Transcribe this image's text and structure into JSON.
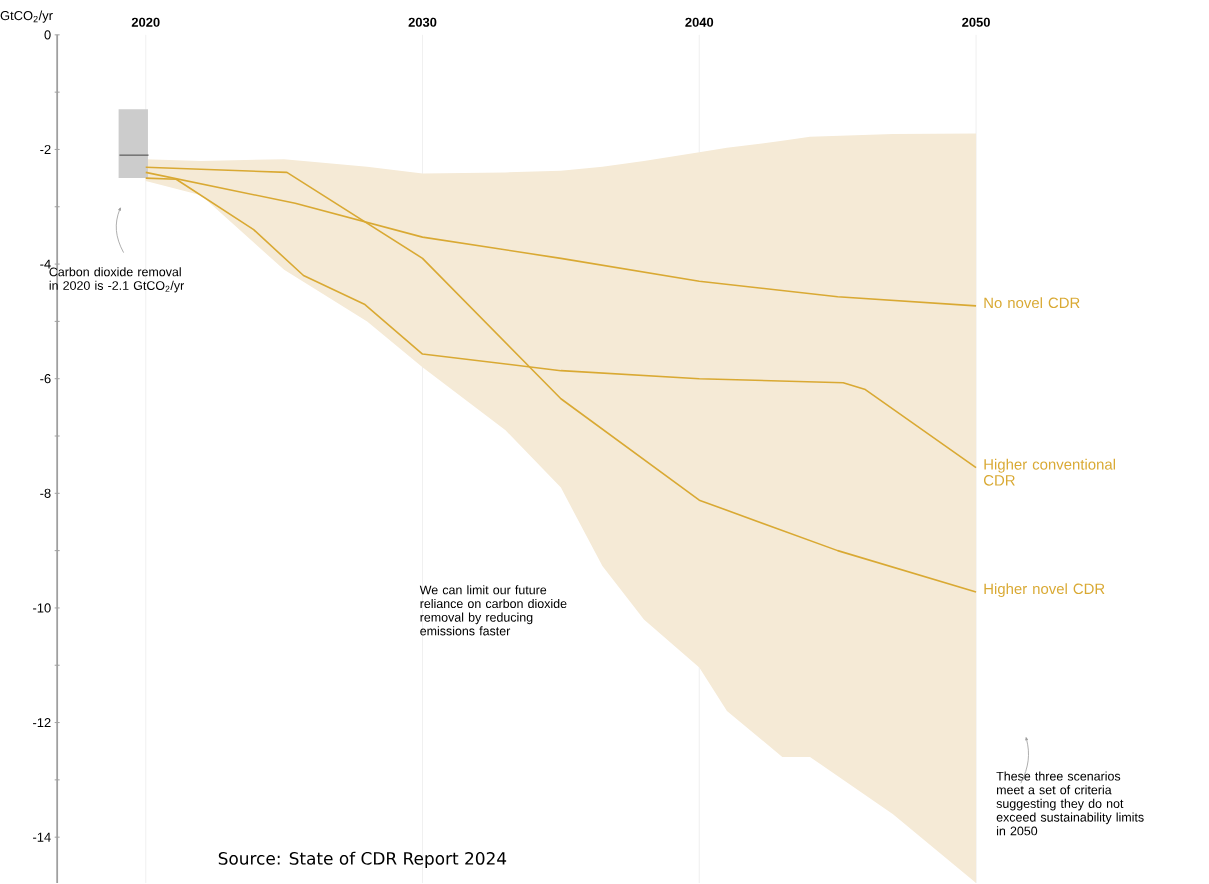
{
  "chart_data": {
    "type": "line",
    "ylabel": "GtCO$_{2}$/yr",
    "xlim": [
      2016.8,
      2050
    ],
    "ylim": [
      -14.8,
      0
    ],
    "xticks": [
      2020,
      2030,
      2040,
      2050
    ],
    "yticks": [
      0,
      {
        "value": -1,
        "label": null
      },
      -2,
      {
        "value": -3,
        "label": null
      },
      -4,
      {
        "value": -5,
        "label": null
      },
      -6,
      {
        "value": -7,
        "label": null
      },
      -8,
      {
        "value": -9,
        "label": null
      },
      -10,
      {
        "value": -11,
        "label": null
      },
      -12,
      {
        "value": -13,
        "label": null
      },
      -14
    ],
    "grid": "x",
    "marker": "none",
    "line_style": "solid",
    "series": [
      {
        "color": "#f5ead6",
        "x": [
          2020,
          2022,
          2025,
          2028,
          2030,
          2033,
          2035,
          2036.5,
          2038,
          2040,
          2041,
          2043,
          2044,
          2047,
          2050
        ],
        "values": [
          null,
          null,
          null,
          null,
          null,
          null,
          null,
          null,
          null,
          null,
          null,
          null,
          null,
          null,
          null
        ],
        "upper": [
          -2.17,
          -2.2,
          -2.17,
          -2.3,
          -2.42,
          -2.4,
          -2.37,
          -2.3,
          -2.2,
          -2.05,
          -1.97,
          -1.85,
          -1.78,
          -1.73,
          -1.72
        ],
        "lower": [
          -2.55,
          -2.8,
          -4.1,
          -5.0,
          -5.8,
          -6.9,
          -7.9,
          -9.27,
          -10.2,
          -11.04,
          -11.8,
          -12.6,
          -12.6,
          -13.6,
          -14.8
        ]
      },
      {
        "type": "bar",
        "color": "#cccccc",
        "x": [
          2019.55
        ],
        "base": [
          -2.5
        ],
        "values": [
          1.2
        ]
      },
      {
        "color": "#777777",
        "x": [
          2019.05,
          2020.1
        ],
        "values": [
          -2.1,
          -2.1
        ]
      },
      {
        "name": "No novel CDR",
        "color": "#d9a933",
        "x": [
          2020,
          2025.4,
          2030,
          2035,
          2040,
          2045,
          2050
        ],
        "values": [
          -2.4,
          -2.94,
          -3.53,
          -3.9,
          -4.3,
          -4.57,
          -4.73
        ]
      },
      {
        "name": "Higher conventional CDR",
        "color": "#d9a933",
        "x": [
          2020,
          2021.1,
          2023.9,
          2025.7,
          2027.9,
          2030,
          2035,
          2040,
          2045.2,
          2046,
          2050
        ],
        "values": [
          -2.5,
          -2.52,
          -3.4,
          -4.2,
          -4.7,
          -5.57,
          -5.86,
          -6.0,
          -6.07,
          -6.19,
          -7.55
        ]
      },
      {
        "name": "Higher novel CDR",
        "color": "#d9a933",
        "x": [
          2020,
          2025.1,
          2030,
          2035,
          2040,
          2045,
          2050
        ],
        "values": [
          -2.31,
          -2.4,
          -3.9,
          -6.35,
          -8.12,
          -9.0,
          -9.72
        ]
      }
    ],
    "annotations": [
      "Carbon dioxide removal in 2020 is -2.1 GtCO$_{2}$/yr",
      "We can limit our future reliance  on carbon dioxide removal by reducing emissions faster",
      "These three scenarios meet a set of criteria suggesting they do not exceed sustainability limits in 2050",
      "Source: State of CDR Report 2024"
    ]
  }
}
